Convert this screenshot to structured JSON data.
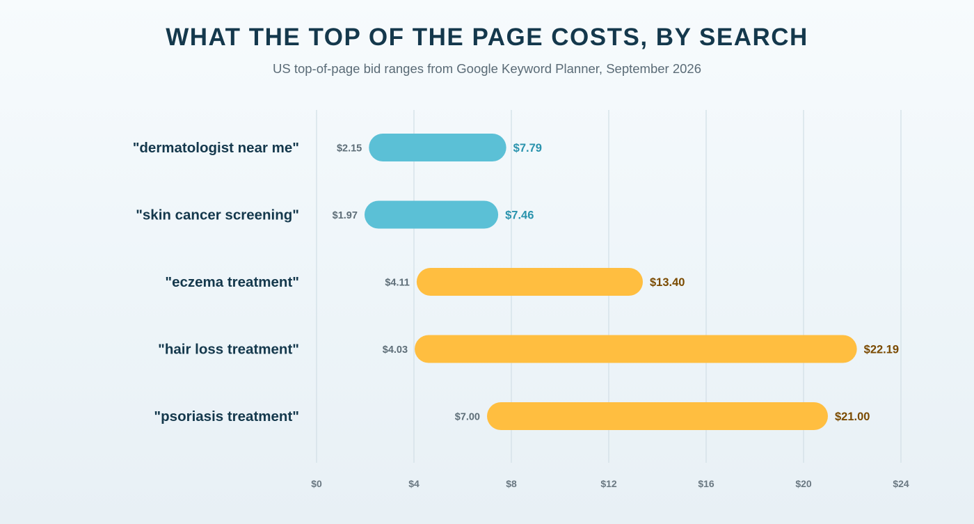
{
  "chart_data": {
    "type": "bar",
    "orientation": "horizontal",
    "variant": "range",
    "title": "WHAT THE TOP OF THE PAGE COSTS, BY SEARCH",
    "subtitle": "US top-of-page bid ranges from Google Keyword Planner, September 2026",
    "categories": [
      "\"dermatologist near me\"",
      "\"skin cancer screening\"",
      "\"eczema treatment\"",
      "\"hair loss treatment\"",
      "\"psoriasis treatment\""
    ],
    "low": [
      2.15,
      1.97,
      4.11,
      4.03,
      7.0
    ],
    "high": [
      7.79,
      7.46,
      13.4,
      22.19,
      21.0
    ],
    "low_labels": [
      "$2.15",
      "$1.97",
      "$4.11",
      "$4.03",
      "$7.00"
    ],
    "high_labels": [
      "$7.79",
      "$7.46",
      "$13.40",
      "$22.19",
      "$21.00"
    ],
    "bar_colors": [
      "#5bc0d6",
      "#5bc0d6",
      "#ffbe40",
      "#ffbe40",
      "#ffbe40"
    ],
    "high_label_colors": [
      "#2a93ad",
      "#2a93ad",
      "#7a4a00",
      "#7a4a00",
      "#7a4a00"
    ],
    "xlim": [
      0,
      24
    ],
    "xticks": [
      0,
      4,
      8,
      12,
      16,
      20,
      24
    ],
    "xtick_labels": [
      "$0",
      "$4",
      "$8",
      "$12",
      "$16",
      "$20",
      "$24"
    ],
    "grid": true,
    "legend": "none",
    "xlabel": "",
    "ylabel": ""
  }
}
